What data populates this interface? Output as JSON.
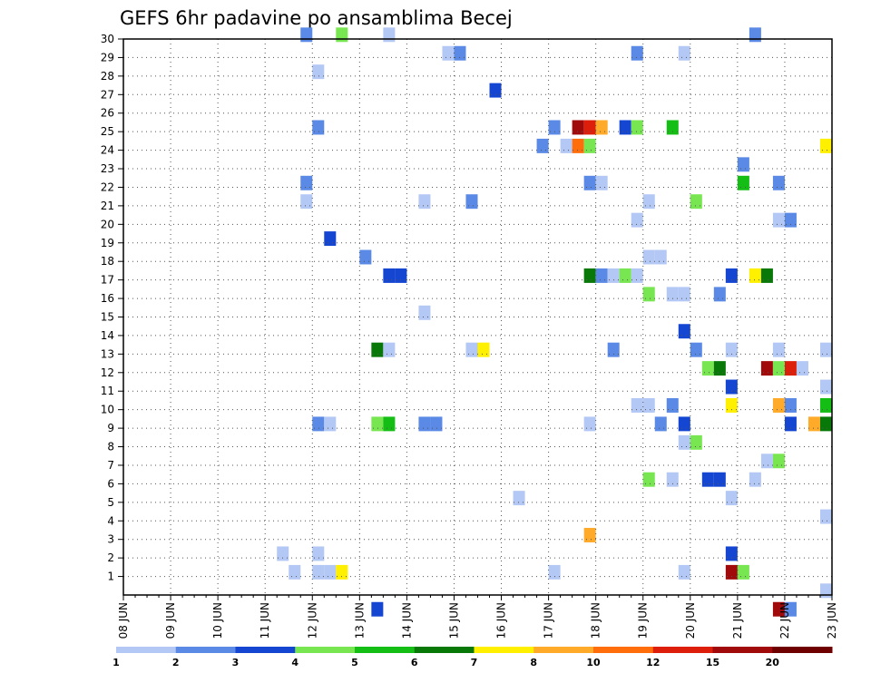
{
  "chart_data": {
    "type": "heatmap",
    "title": "GEFS 6hr padavine po ansamblima Becej",
    "x": {
      "range": [
        8,
        23
      ],
      "tick_values": [
        8,
        9,
        10,
        11,
        12,
        13,
        14,
        15,
        16,
        17,
        18,
        19,
        20,
        21,
        22,
        23
      ],
      "tick_labels": [
        "08 JUN",
        "09 JUN",
        "10 JUN",
        "11 JUN",
        "12 JUN",
        "13 JUN",
        "14 JUN",
        "15 JUN",
        "16 JUN",
        "17 JUN",
        "18 JUN",
        "19 JUN",
        "20 JUN",
        "21 JUN",
        "22 JUN",
        "23 JUN"
      ],
      "step_days": 0.25
    },
    "y": {
      "range": [
        0,
        30
      ],
      "tick_labels": [
        "1",
        "2",
        "3",
        "4",
        "5",
        "6",
        "7",
        "8",
        "9",
        "10",
        "11",
        "12",
        "13",
        "14",
        "15",
        "16",
        "17",
        "18",
        "19",
        "20",
        "21",
        "22",
        "23",
        "24",
        "25",
        "26",
        "27",
        "28",
        "29",
        "30"
      ]
    },
    "grid": true,
    "colorbar": {
      "position": "bottom",
      "labels": [
        "1",
        "2",
        "3",
        "4",
        "5",
        "6",
        "7",
        "8",
        "10",
        "12",
        "15",
        "20"
      ],
      "colors": [
        "#b4c8f5",
        "#5a8ae6",
        "#1446d2",
        "#78e650",
        "#14be14",
        "#087808",
        "#fff000",
        "#ffaa28",
        "#ff6e0a",
        "#dc1e0a",
        "#a00a0a",
        "#6e0000"
      ]
    },
    "cells": [
      [
        30,
        11.75,
        1
      ],
      [
        30,
        12.5,
        3
      ],
      [
        30,
        13.5,
        0
      ],
      [
        30,
        21.25,
        1
      ],
      [
        29,
        14.75,
        0
      ],
      [
        29,
        15,
        1
      ],
      [
        29,
        18.75,
        1
      ],
      [
        29,
        19.75,
        0
      ],
      [
        28,
        12,
        0
      ],
      [
        27,
        15.75,
        2
      ],
      [
        25,
        12,
        1
      ],
      [
        25,
        17,
        1
      ],
      [
        25,
        17.5,
        10
      ],
      [
        25,
        17.75,
        9
      ],
      [
        25,
        18,
        7
      ],
      [
        25,
        18.5,
        2
      ],
      [
        25,
        18.75,
        3
      ],
      [
        25,
        19.5,
        4
      ],
      [
        24,
        16.75,
        1
      ],
      [
        24,
        17.25,
        0
      ],
      [
        24,
        17.5,
        8
      ],
      [
        24,
        17.75,
        3
      ],
      [
        24,
        22.75,
        6
      ],
      [
        23,
        21,
        1
      ],
      [
        22,
        11.75,
        1
      ],
      [
        22,
        17.75,
        1
      ],
      [
        22,
        18,
        0
      ],
      [
        22,
        21,
        4
      ],
      [
        22,
        21.75,
        1
      ],
      [
        21,
        11.75,
        0
      ],
      [
        21,
        14.25,
        0
      ],
      [
        21,
        15.25,
        1
      ],
      [
        21,
        19,
        0
      ],
      [
        21,
        20,
        3
      ],
      [
        20,
        18.75,
        0
      ],
      [
        20,
        21.75,
        0
      ],
      [
        20,
        22,
        1
      ],
      [
        19,
        12.25,
        2
      ],
      [
        18,
        13,
        1
      ],
      [
        18,
        19,
        0
      ],
      [
        18,
        19.25,
        0
      ],
      [
        17,
        13.5,
        2
      ],
      [
        17,
        13.75,
        2
      ],
      [
        17,
        17.75,
        5
      ],
      [
        17,
        18,
        1
      ],
      [
        17,
        18.25,
        0
      ],
      [
        17,
        18.5,
        3
      ],
      [
        17,
        18.75,
        0
      ],
      [
        17,
        20.75,
        2
      ],
      [
        17,
        21.25,
        6
      ],
      [
        17,
        21.5,
        5
      ],
      [
        16,
        19,
        3
      ],
      [
        16,
        19.5,
        0
      ],
      [
        16,
        19.75,
        0
      ],
      [
        16,
        20.5,
        1
      ],
      [
        15,
        14.25,
        0
      ],
      [
        14,
        19.75,
        2
      ],
      [
        13,
        13.25,
        5
      ],
      [
        13,
        13.5,
        0
      ],
      [
        13,
        15.25,
        0
      ],
      [
        13,
        15.5,
        6
      ],
      [
        13,
        18.25,
        1
      ],
      [
        13,
        20,
        1
      ],
      [
        13,
        20.75,
        0
      ],
      [
        13,
        21.75,
        0
      ],
      [
        13,
        22.75,
        0
      ],
      [
        12,
        20.25,
        3
      ],
      [
        12,
        20.5,
        5
      ],
      [
        12,
        21.5,
        10
      ],
      [
        12,
        21.75,
        3
      ],
      [
        12,
        22,
        9
      ],
      [
        12,
        22.25,
        0
      ],
      [
        11,
        20.75,
        2
      ],
      [
        11,
        22.75,
        0
      ],
      [
        10,
        18.75,
        0
      ],
      [
        10,
        19
      ],
      [
        10,
        19.5,
        1
      ],
      [
        10,
        20.75,
        6
      ],
      [
        10,
        21.75,
        7
      ],
      [
        10,
        22,
        1
      ],
      [
        10,
        22.75,
        4
      ],
      [
        9,
        12,
        1
      ],
      [
        9,
        12.25,
        0
      ],
      [
        9,
        13.25,
        3
      ],
      [
        9,
        13.5,
        4
      ],
      [
        9,
        14.25,
        1
      ],
      [
        9,
        14.5,
        1
      ],
      [
        9,
        17.75,
        0
      ],
      [
        9,
        19.25,
        1
      ],
      [
        9,
        19.75,
        2
      ],
      [
        9,
        22,
        2
      ],
      [
        9,
        22.5,
        7
      ],
      [
        9,
        22.75,
        5
      ],
      [
        8,
        19.75,
        0
      ],
      [
        8,
        20,
        3
      ],
      [
        7,
        21.5,
        0
      ],
      [
        7,
        21.75,
        3
      ],
      [
        6,
        19,
        3
      ],
      [
        6,
        19.5,
        0
      ],
      [
        6,
        20.25,
        2
      ],
      [
        6,
        20.5,
        2
      ],
      [
        6,
        21.25,
        0
      ],
      [
        5,
        16.25,
        0
      ],
      [
        5,
        20.75,
        0
      ],
      [
        4,
        22.75,
        0
      ],
      [
        3,
        17.75,
        7
      ],
      [
        2,
        11.25,
        0
      ],
      [
        2,
        12,
        0
      ],
      [
        2,
        20.75,
        2
      ],
      [
        1,
        11.5,
        0
      ],
      [
        1,
        12,
        0
      ],
      [
        1,
        12.25,
        0
      ],
      [
        1,
        12.5,
        6
      ],
      [
        1,
        17,
        0
      ],
      [
        1,
        19.75,
        0
      ],
      [
        1,
        20.75,
        10
      ],
      [
        1,
        21,
        3
      ],
      [
        0,
        22.75,
        0
      ],
      [
        -1,
        13.25,
        2
      ],
      [
        -1,
        21.75,
        10
      ],
      [
        -1,
        22,
        1
      ]
    ]
  }
}
